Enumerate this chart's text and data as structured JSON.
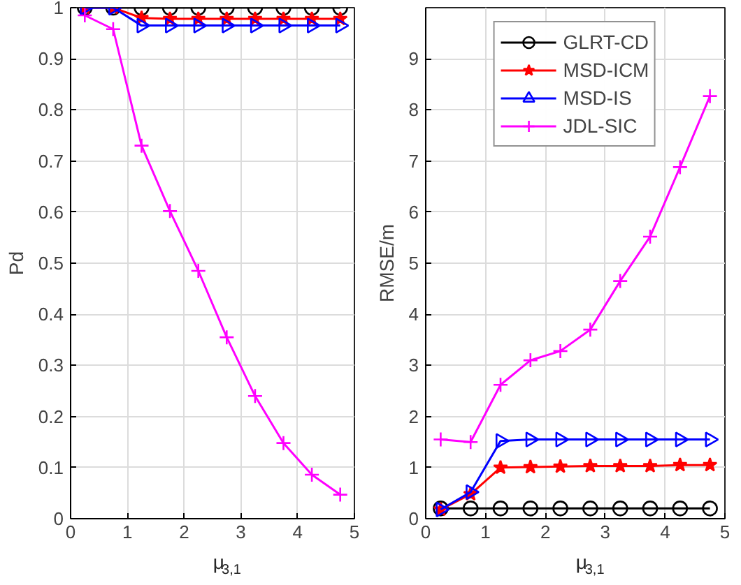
{
  "chart_data": [
    {
      "type": "line",
      "xlabel": "μ$_{3,1}$",
      "ylabel": "Pd",
      "x": [
        0.25,
        0.75,
        1.25,
        1.75,
        2.25,
        2.75,
        3.25,
        3.75,
        4.25,
        4.75
      ],
      "xlim": [
        0,
        5
      ],
      "xticks": [
        0,
        1,
        2,
        3,
        4,
        5
      ],
      "ylim": [
        0,
        1
      ],
      "yticks": [
        0,
        0.1,
        0.2,
        0.3,
        0.4,
        0.5,
        0.6,
        0.7,
        0.8,
        0.9,
        1
      ],
      "grid": true,
      "legend": false,
      "series": [
        {
          "color": "#000000",
          "marker": "circle",
          "values": [
            1,
            1,
            1,
            1,
            1,
            1,
            1,
            1,
            1,
            1
          ]
        },
        {
          "color": "#ff0000",
          "marker": "star",
          "values": [
            1,
            1,
            0.98,
            0.978,
            0.978,
            0.978,
            0.978,
            0.978,
            0.978,
            0.978
          ]
        },
        {
          "color": "#0000ff",
          "marker": "triangle",
          "values": [
            1,
            1,
            0.965,
            0.965,
            0.965,
            0.965,
            0.965,
            0.965,
            0.965,
            0.965
          ]
        },
        {
          "color": "#ff00ff",
          "marker": "cross",
          "values": [
            0.985,
            0.958,
            0.73,
            0.602,
            0.485,
            0.355,
            0.24,
            0.148,
            0.086,
            0.047
          ]
        }
      ]
    },
    {
      "type": "line",
      "xlabel": "μ$_{3,1}$",
      "ylabel": "RMSE/m",
      "x": [
        0.25,
        0.75,
        1.25,
        1.75,
        2.25,
        2.75,
        3.25,
        3.75,
        4.25,
        4.75
      ],
      "xlim": [
        0,
        5
      ],
      "xticks": [
        0,
        1,
        2,
        3,
        4,
        5
      ],
      "ylim": [
        0,
        10
      ],
      "yticks": [
        0,
        1,
        2,
        3,
        4,
        5,
        6,
        7,
        8,
        9
      ],
      "grid": true,
      "legend": "top",
      "series": [
        {
          "name": "GLRT-CD",
          "color": "#000000",
          "marker": "circle",
          "values": [
            0.2,
            0.2,
            0.2,
            0.2,
            0.2,
            0.2,
            0.2,
            0.2,
            0.2,
            0.2
          ]
        },
        {
          "name": "MSD-ICM",
          "color": "#ff0000",
          "marker": "star",
          "values": [
            0.18,
            0.48,
            1.0,
            1.01,
            1.02,
            1.03,
            1.03,
            1.03,
            1.05,
            1.05
          ]
        },
        {
          "name": "MSD-IS",
          "color": "#0000ff",
          "marker": "triangle",
          "values": [
            0.18,
            0.52,
            1.52,
            1.55,
            1.55,
            1.55,
            1.55,
            1.55,
            1.55,
            1.55
          ]
        },
        {
          "name": "JDL-SIC",
          "color": "#ff00ff",
          "marker": "cross",
          "values": [
            1.55,
            1.5,
            2.62,
            3.1,
            3.28,
            3.7,
            4.65,
            5.52,
            6.88,
            8.27
          ]
        }
      ]
    }
  ]
}
